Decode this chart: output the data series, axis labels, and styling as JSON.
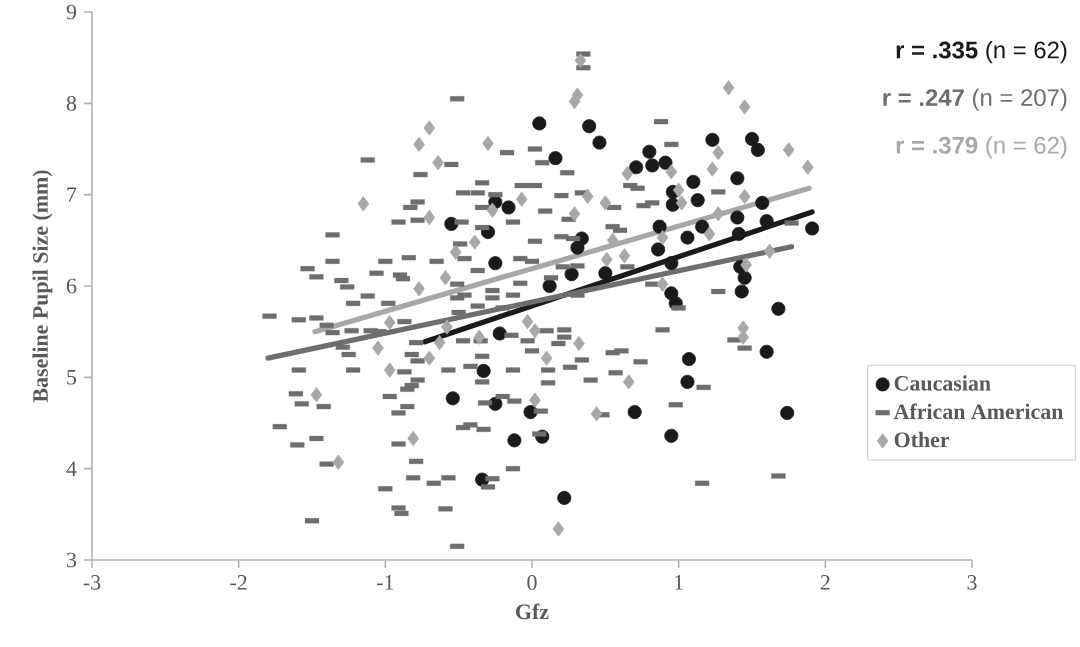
{
  "chart_data": {
    "type": "scatter",
    "xlabel": "Gfz",
    "ylabel": "Baseline Pupil Size (mm)",
    "xlim": [
      -3,
      3
    ],
    "ylim": [
      3,
      9
    ],
    "xticks": [
      -3,
      -2,
      -1,
      0,
      1,
      2,
      3
    ],
    "yticks": [
      3,
      4,
      5,
      6,
      7,
      8,
      9
    ],
    "legend": "right",
    "annotations": [
      "**r = .335** (n = 62)",
      "**r = .247** (n = 207)",
      "**r = .379** (n = 62)"
    ],
    "series": [
      {
        "name": "Caucasian",
        "color": "#1a1a1a",
        "marker": "circle",
        "x": [
          0.05,
          0.39,
          0.46,
          0.16,
          0.8,
          0.71,
          0.82,
          0.91,
          1.23,
          1.5,
          1.54,
          1.1,
          1.4,
          1.13,
          0.96,
          0.96,
          1.57,
          1.4,
          1.6,
          1.91,
          1.16,
          0.87,
          1.06,
          1.41,
          0.86,
          0.95,
          0.34,
          0.31,
          0.27,
          0.12,
          0.5,
          1.42,
          1.45,
          0.95,
          0.98,
          1.43,
          1.68,
          1.6,
          1.07,
          1.06,
          0.7,
          1.74,
          0.95,
          0.07,
          -0.01,
          0.22,
          -0.25,
          -0.16,
          -0.55,
          -0.3,
          -0.25,
          -0.22,
          -0.33,
          -0.54,
          -0.25,
          -0.12,
          -0.34
        ],
        "values": [
          7.78,
          7.75,
          7.57,
          7.4,
          7.47,
          7.3,
          7.32,
          7.35,
          7.6,
          7.61,
          7.49,
          7.14,
          7.18,
          6.94,
          7.03,
          6.89,
          6.91,
          6.75,
          6.71,
          6.63,
          6.65,
          6.65,
          6.53,
          6.57,
          6.4,
          6.25,
          6.52,
          6.42,
          6.13,
          6.0,
          6.14,
          6.21,
          6.09,
          5.92,
          5.81,
          5.94,
          5.75,
          5.28,
          5.2,
          4.95,
          4.62,
          4.61,
          4.36,
          4.35,
          4.62,
          3.68,
          6.92,
          6.86,
          6.68,
          6.59,
          6.25,
          5.48,
          5.07,
          4.77,
          4.71,
          4.31,
          3.88
        ]
      },
      {
        "name": "African American",
        "color": "#6e6e6e",
        "marker": "square",
        "x": [
          -0.51,
          -1.12,
          -0.17,
          0.02,
          -0.55,
          -0.76,
          -0.34,
          -0.07,
          0.02,
          -0.47,
          -0.37,
          -0.25,
          -0.78,
          -0.83,
          -0.34,
          -0.91,
          -0.78,
          -0.48,
          -0.13,
          -1.36,
          -0.34,
          -0.49,
          0.02,
          -1.36,
          -1.0,
          -0.84,
          -0.65,
          -0.46,
          -0.08,
          0.0,
          -1.53,
          -1.47,
          -1.3,
          -1.06,
          -0.9,
          -0.88,
          -0.37,
          -0.08,
          -0.51,
          -1.26,
          0.35,
          0.35,
          0.88,
          0.95,
          0.07,
          0.24,
          0.2,
          0.34,
          0.67,
          0.72,
          0.09,
          0.25,
          0.56,
          0.76,
          0.82,
          1.27,
          0.55,
          0.6,
          0.2,
          0.28,
          0.21,
          0.31,
          0.65,
          1.77,
          0.13,
          0.82,
          -1.12,
          -1.22,
          -0.98,
          -0.51,
          -0.46,
          -0.27,
          -0.27,
          -0.13,
          -1.79,
          -1.59,
          -1.47,
          -1.4,
          -1.36,
          -1.23,
          -1.1,
          -1.04,
          -0.87,
          -0.5,
          -0.37,
          -0.2,
          -1.29,
          -1.25,
          -0.79,
          -0.82,
          -0.78,
          -0.47,
          -0.35,
          -0.14,
          -0.03,
          0.0,
          -0.34,
          -1.59,
          -1.22,
          -0.87,
          -0.57,
          -0.42,
          -0.13,
          -0.78,
          -0.82,
          -0.85,
          -0.34,
          -1.61,
          -1.57,
          -1.42,
          -0.97,
          -0.85,
          -0.91,
          -0.32,
          -0.2,
          -0.12,
          -1.72,
          -1.6,
          -1.47,
          -0.91,
          -0.47,
          -0.42,
          -0.33,
          -1.4,
          -0.79,
          -0.81,
          -0.67,
          -0.57,
          -0.27,
          -0.3,
          -1.0,
          -0.13,
          -0.91,
          -0.89,
          -0.59,
          -1.5,
          -0.51,
          0.31,
          1.0,
          1.27,
          0.1,
          0.22,
          0.22,
          0.18,
          0.34,
          0.26,
          0.11,
          0.11,
          0.55,
          0.61,
          0.74,
          0.57,
          0.4,
          0.89,
          1.38,
          1.45,
          1.17,
          0.06,
          0.48,
          0.98,
          0.05,
          1.16,
          1.68
        ],
        "values": [
          8.05,
          7.38,
          7.46,
          7.5,
          7.33,
          7.22,
          7.13,
          7.1,
          7.1,
          7.02,
          7.02,
          7.0,
          6.92,
          6.86,
          6.86,
          6.7,
          6.72,
          6.7,
          6.7,
          6.56,
          6.64,
          6.46,
          6.49,
          6.27,
          6.27,
          6.31,
          6.27,
          6.3,
          6.3,
          6.27,
          6.19,
          6.1,
          6.06,
          6.14,
          6.12,
          6.08,
          6.17,
          6.03,
          6.02,
          5.99,
          8.54,
          8.39,
          7.8,
          7.55,
          7.35,
          7.24,
          6.99,
          7.02,
          7.1,
          7.07,
          6.82,
          6.73,
          6.86,
          6.88,
          6.91,
          7.03,
          6.65,
          6.61,
          6.54,
          6.52,
          6.21,
          6.22,
          6.21,
          6.69,
          6.09,
          6.02,
          5.89,
          5.81,
          5.81,
          5.87,
          5.9,
          5.95,
          5.87,
          5.9,
          5.67,
          5.63,
          5.65,
          5.57,
          5.49,
          5.51,
          5.51,
          5.5,
          5.61,
          5.71,
          5.78,
          5.76,
          5.33,
          5.25,
          5.38,
          5.25,
          5.18,
          5.4,
          5.4,
          5.46,
          5.4,
          5.29,
          5.23,
          5.08,
          5.08,
          5.06,
          5.08,
          5.12,
          5.08,
          4.97,
          4.91,
          4.87,
          4.95,
          4.82,
          4.71,
          4.68,
          4.79,
          4.68,
          4.61,
          4.72,
          4.79,
          4.74,
          4.46,
          4.26,
          4.33,
          4.27,
          4.45,
          4.48,
          4.43,
          4.05,
          4.08,
          3.9,
          3.84,
          3.9,
          3.89,
          3.8,
          3.78,
          4.0,
          3.57,
          3.51,
          3.56,
          3.43,
          3.15,
          5.9,
          5.76,
          5.94,
          5.51,
          5.52,
          5.44,
          5.37,
          5.19,
          5.11,
          5.08,
          4.94,
          5.27,
          5.29,
          5.17,
          5.05,
          4.97,
          5.52,
          5.41,
          5.32,
          4.89,
          4.63,
          4.59,
          4.7,
          4.38,
          3.84,
          3.92
        ]
      },
      {
        "name": "Other",
        "color": "#a8a8a8",
        "marker": "diamond",
        "x": [
          -0.7,
          -0.77,
          -0.3,
          -0.64,
          -1.15,
          -0.07,
          -0.27,
          -0.7,
          -0.39,
          -0.52,
          -0.59,
          -0.77,
          0.33,
          0.31,
          0.29,
          1.34,
          1.45,
          1.75,
          1.88,
          1.27,
          1.23,
          0.95,
          0.65,
          1.0,
          1.02,
          0.38,
          0.5,
          0.29,
          1.45,
          1.27,
          0.55,
          0.89,
          1.21,
          0.51,
          0.63,
          1.62,
          1.46,
          0.89,
          0.02,
          0.32,
          0.1,
          0.66,
          0.02,
          0.44,
          1.44,
          1.44,
          0.18,
          -0.97,
          -1.05,
          -0.7,
          -0.97,
          -1.47,
          -0.81,
          -1.32,
          -0.03,
          -0.36,
          -0.58,
          -0.63
        ],
        "values": [
          7.73,
          7.55,
          7.56,
          7.35,
          6.9,
          6.95,
          6.83,
          6.75,
          6.48,
          6.37,
          6.09,
          5.97,
          8.47,
          8.09,
          8.02,
          8.17,
          7.96,
          7.49,
          7.3,
          7.46,
          7.28,
          7.25,
          7.23,
          7.05,
          6.91,
          6.98,
          6.91,
          6.79,
          6.98,
          6.79,
          6.5,
          6.53,
          6.57,
          6.29,
          6.33,
          6.38,
          6.23,
          6.02,
          5.51,
          5.37,
          5.21,
          4.95,
          4.75,
          4.6,
          5.54,
          5.44,
          3.34,
          5.6,
          5.32,
          5.21,
          5.08,
          4.81,
          4.33,
          4.07,
          5.61,
          5.44,
          5.55,
          5.38
        ]
      },
      {
        "type": "line",
        "color": "#1a1a1a",
        "x": [
          -0.73,
          1.91
        ],
        "values": [
          5.39,
          6.81
        ]
      },
      {
        "type": "line",
        "color": "#6e6e6e",
        "x": [
          -1.8,
          1.77
        ],
        "values": [
          5.21,
          6.43
        ]
      },
      {
        "type": "line",
        "color": "#a8a8a8",
        "x": [
          -1.48,
          1.89
        ],
        "values": [
          5.5,
          7.07
        ]
      }
    ]
  }
}
